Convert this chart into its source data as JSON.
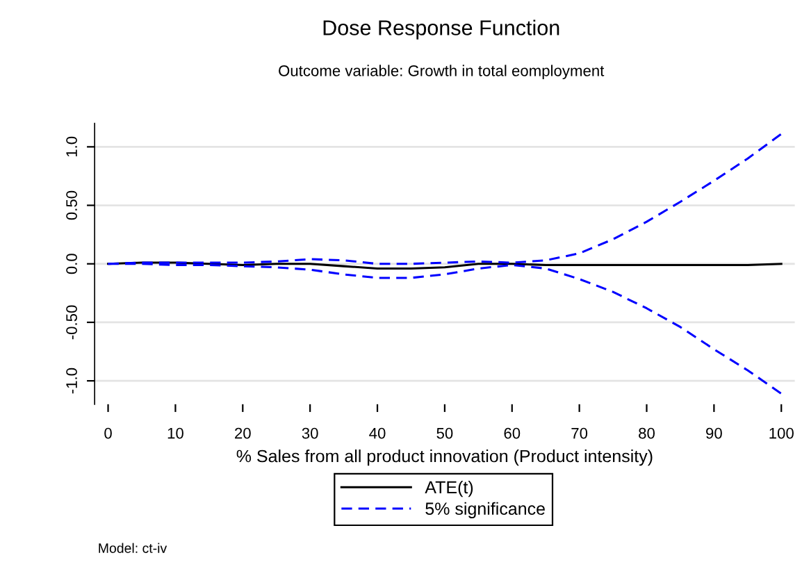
{
  "chart_data": {
    "type": "line",
    "title": "Dose Response Function",
    "subtitle": "Outcome variable: Growth in total eomployment",
    "xlabel": "% Sales from all product innovation (Product intensity)",
    "annotations": [
      "Model: ct-iv"
    ],
    "x": [
      0,
      5,
      10,
      15,
      20,
      25,
      30,
      35,
      40,
      45,
      50,
      55,
      60,
      65,
      70,
      75,
      80,
      85,
      90,
      95,
      100
    ],
    "series": [
      {
        "name": "ATE(t)",
        "color": "#000000",
        "line_style": "solid",
        "values": [
          0,
          0.01,
          0.01,
          0,
          -0.01,
          0,
          0,
          -0.02,
          -0.04,
          -0.04,
          -0.03,
          0,
          0,
          -0.01,
          -0.01,
          -0.01,
          -0.01,
          -0.01,
          -0.01,
          -0.01,
          0
        ]
      },
      {
        "name": "5% significance",
        "color": "#0000ff",
        "line_style": "dashed",
        "values": [
          0,
          0.01,
          0.01,
          0.01,
          0.01,
          0.02,
          0.04,
          0.03,
          0,
          0,
          0.01,
          0.02,
          0.01,
          0.03,
          0.09,
          0.21,
          0.36,
          0.53,
          0.71,
          0.9,
          1.11
        ]
      },
      {
        "color": "#0000ff",
        "line_style": "dashed",
        "values": [
          0,
          0,
          -0.01,
          -0.01,
          -0.02,
          -0.03,
          -0.05,
          -0.09,
          -0.12,
          -0.12,
          -0.09,
          -0.04,
          -0.01,
          -0.04,
          -0.13,
          -0.24,
          -0.38,
          -0.54,
          -0.73,
          -0.91,
          -1.11
        ]
      }
    ],
    "xlim": [
      -2,
      102
    ],
    "xticks": [
      0,
      10,
      20,
      30,
      40,
      50,
      60,
      70,
      80,
      90,
      100
    ],
    "ylim": [
      -1.2,
      1.2
    ],
    "yticks": [
      {
        "value": -1,
        "label": "-1.0"
      },
      {
        "value": -0.5,
        "label": "-0.50"
      },
      {
        "value": 0,
        "label": "0.0"
      },
      {
        "value": 0.5,
        "label": "0.50"
      },
      {
        "value": 1,
        "label": "1.0"
      }
    ],
    "grid": "y",
    "legend": "bottom",
    "marker": "none"
  }
}
